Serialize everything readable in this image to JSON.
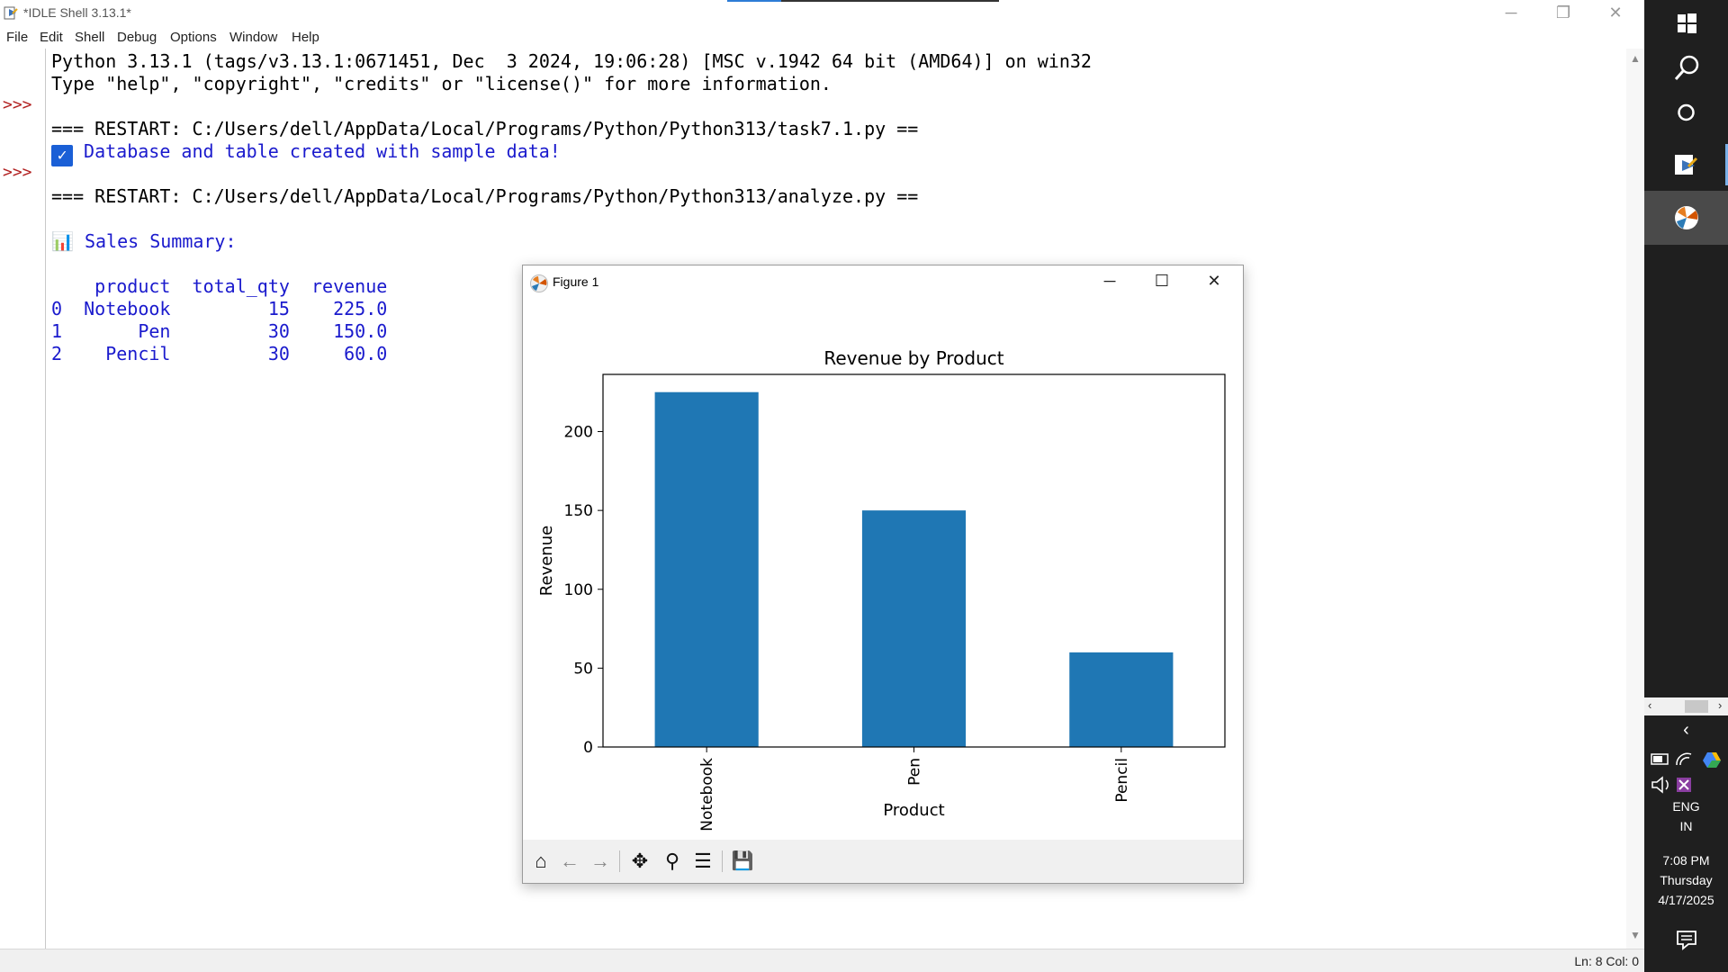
{
  "window": {
    "title": "*IDLE Shell 3.13.1*",
    "minimize": "─",
    "restore": "❐",
    "close": "✕"
  },
  "menu": [
    "File",
    "Edit",
    "Shell",
    "Debug",
    "Options",
    "Window",
    "Help"
  ],
  "shell": {
    "prompt": ">>>",
    "lines": [
      "Python 3.13.1 (tags/v3.13.1:0671451, Dec  3 2024, 19:06:28) [MSC v.1942 64 bit (AMD64)] on win32",
      "Type \"help\", \"copyright\", \"credits\" or \"license()\" for more information.",
      "=== RESTART: C:/Users/dell/AppData/Local/Programs/Python/Python313/task7.1.py ==",
      " Database and table created with sample data!",
      "=== RESTART: C:/Users/dell/AppData/Local/Programs/Python/Python313/analyze.py ==",
      "📊 Sales Summary:",
      "    product  total_qty  revenue",
      "0  Notebook         15    225.0",
      "1       Pen         30    150.0",
      "2    Pencil         30     60.0"
    ],
    "checkmark": "✓"
  },
  "status": {
    "position": "Ln: 8   Col: 0"
  },
  "taskbar": {
    "lang_line1": "ENG",
    "lang_line2": "IN",
    "time": "7:08 PM",
    "day": "Thursday",
    "date": "4/17/2025"
  },
  "figure": {
    "title": "Figure 1",
    "minimize": "─",
    "maximize": "☐",
    "close": "✕",
    "toolbar": {
      "home": "⌂",
      "back": "←",
      "forward": "→",
      "pan": "✥",
      "zoom": "⚲",
      "configure": "☰",
      "save": "💾"
    }
  },
  "chart_data": {
    "type": "bar",
    "title": "Revenue by Product",
    "xlabel": "Product",
    "ylabel": "Revenue",
    "categories": [
      "Notebook",
      "Pen",
      "Pencil"
    ],
    "values": [
      225.0,
      150.0,
      60.0
    ],
    "ylim": [
      0,
      236.25
    ],
    "yticks": [
      0,
      50,
      100,
      150,
      200
    ],
    "bar_color": "#1f77b4",
    "grid": false
  }
}
